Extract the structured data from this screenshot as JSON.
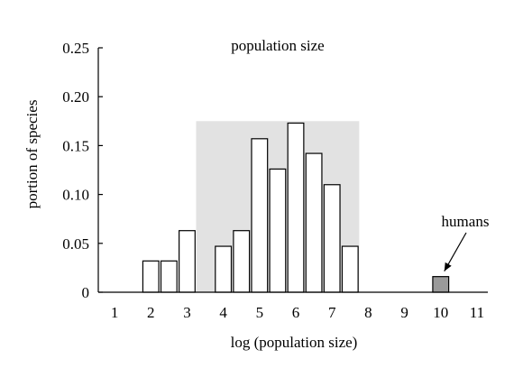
{
  "chart_data": {
    "type": "bar",
    "title": "population size",
    "xlabel": "log (population size)",
    "ylabel": "portion of species",
    "xlim": [
      0.55,
      11.3
    ],
    "ylim": [
      0,
      0.25
    ],
    "grid": false,
    "x_ticks": [
      "1",
      "2",
      "3",
      "4",
      "5",
      "6",
      "7",
      "8",
      "9",
      "10",
      "11"
    ],
    "y_ticks": [
      "0",
      "0.05",
      "0.10",
      "0.15",
      "0.20",
      "0.25"
    ],
    "shaded_range": [
      3.25,
      7.75
    ],
    "series": [
      {
        "bins": [
          {
            "x": 2.0,
            "value": 0.032
          },
          {
            "x": 2.5,
            "value": 0.032
          },
          {
            "x": 3.0,
            "value": 0.063
          },
          {
            "x": 4.0,
            "value": 0.047
          },
          {
            "x": 4.5,
            "value": 0.063
          },
          {
            "x": 5.0,
            "value": 0.157
          },
          {
            "x": 5.5,
            "value": 0.126
          },
          {
            "x": 6.0,
            "value": 0.173
          },
          {
            "x": 6.5,
            "value": 0.142
          },
          {
            "x": 7.0,
            "value": 0.11
          },
          {
            "x": 7.5,
            "value": 0.047
          }
        ],
        "color": "#ffffff"
      },
      {
        "bins": [
          {
            "x": 10.0,
            "value": 0.016
          }
        ],
        "color": "#9a9a9a"
      }
    ],
    "annotation": {
      "text": "humans",
      "x": 10.0
    }
  }
}
